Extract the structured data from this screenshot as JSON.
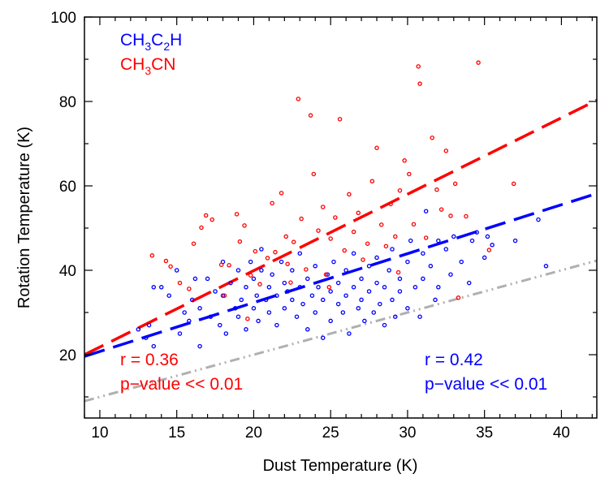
{
  "chart_data": {
    "type": "scatter",
    "title": "",
    "xlabel": "Dust Temperature (K)",
    "ylabel": "Rotation Temperature (K)",
    "xlim": [
      9,
      42.3
    ],
    "ylim": [
      5,
      100
    ],
    "x_ticks": [
      10,
      15,
      20,
      25,
      30,
      35,
      40
    ],
    "y_ticks": [
      20,
      40,
      60,
      80,
      100
    ],
    "grid": false,
    "legend_position": "top-left",
    "series": [
      {
        "name": "CH3C2H",
        "label_parts": [
          [
            "CH",
            "n"
          ],
          [
            "3",
            "sub"
          ],
          [
            "C",
            "n"
          ],
          [
            "2",
            "sub"
          ],
          [
            "H",
            "n"
          ]
        ],
        "color": "#0000ff",
        "points": [
          [
            12.5,
            26
          ],
          [
            13,
            24
          ],
          [
            13.2,
            27
          ],
          [
            13.5,
            22
          ],
          [
            13.5,
            36
          ],
          [
            14,
            36
          ],
          [
            14.5,
            34
          ],
          [
            15,
            40
          ],
          [
            15.2,
            25
          ],
          [
            15.5,
            30
          ],
          [
            15.8,
            28
          ],
          [
            16,
            33
          ],
          [
            16.2,
            38
          ],
          [
            16.5,
            31
          ],
          [
            16.5,
            22
          ],
          [
            17,
            38
          ],
          [
            17.2,
            29
          ],
          [
            17.5,
            35
          ],
          [
            17.8,
            27
          ],
          [
            18,
            34
          ],
          [
            18,
            42
          ],
          [
            18.2,
            25
          ],
          [
            18.5,
            37
          ],
          [
            18.8,
            31
          ],
          [
            19,
            29
          ],
          [
            19,
            40
          ],
          [
            19.2,
            33
          ],
          [
            19.5,
            36
          ],
          [
            19.5,
            26
          ],
          [
            19.8,
            42
          ],
          [
            20,
            31
          ],
          [
            20,
            38
          ],
          [
            20.2,
            34
          ],
          [
            20.3,
            28
          ],
          [
            20.5,
            40
          ],
          [
            20.5,
            45
          ],
          [
            20.8,
            33
          ],
          [
            21,
            36
          ],
          [
            21,
            30
          ],
          [
            21.2,
            39
          ],
          [
            21.5,
            34
          ],
          [
            21.5,
            27
          ],
          [
            21.8,
            42
          ],
          [
            22,
            31
          ],
          [
            22,
            37
          ],
          [
            22.2,
            35
          ],
          [
            22.5,
            33
          ],
          [
            22.5,
            40
          ],
          [
            22.8,
            29
          ],
          [
            23,
            36
          ],
          [
            23,
            44
          ],
          [
            23.2,
            32
          ],
          [
            23.5,
            38
          ],
          [
            23.5,
            26
          ],
          [
            23.8,
            34
          ],
          [
            24,
            41
          ],
          [
            24,
            30
          ],
          [
            24.2,
            36
          ],
          [
            24.5,
            33
          ],
          [
            24.5,
            24
          ],
          [
            24.8,
            39
          ],
          [
            25,
            35
          ],
          [
            25,
            28
          ],
          [
            25.2,
            42
          ],
          [
            25.5,
            32
          ],
          [
            25.5,
            37
          ],
          [
            25.8,
            30
          ],
          [
            26,
            40
          ],
          [
            26,
            34
          ],
          [
            26.2,
            25
          ],
          [
            26.5,
            36
          ],
          [
            26.5,
            44
          ],
          [
            26.8,
            31
          ],
          [
            27,
            38
          ],
          [
            27,
            33
          ],
          [
            27.2,
            28
          ],
          [
            27.5,
            41
          ],
          [
            27.5,
            35
          ],
          [
            27.8,
            30
          ],
          [
            28,
            37
          ],
          [
            28,
            43
          ],
          [
            28.2,
            32
          ],
          [
            28.5,
            36
          ],
          [
            28.5,
            27
          ],
          [
            28.8,
            40
          ],
          [
            29,
            33
          ],
          [
            29,
            45
          ],
          [
            29.2,
            29
          ],
          [
            29.5,
            38
          ],
          [
            29.5,
            35
          ],
          [
            30,
            42
          ],
          [
            30,
            31
          ],
          [
            30.2,
            47
          ],
          [
            30.5,
            36
          ],
          [
            30.8,
            29
          ],
          [
            31,
            44
          ],
          [
            31,
            38
          ],
          [
            31.2,
            54
          ],
          [
            31.5,
            41
          ],
          [
            31.8,
            33
          ],
          [
            32,
            47
          ],
          [
            32,
            36
          ],
          [
            32.5,
            45
          ],
          [
            32.8,
            39
          ],
          [
            33,
            48
          ],
          [
            33.5,
            42
          ],
          [
            34,
            37
          ],
          [
            34.2,
            47
          ],
          [
            34.5,
            49
          ],
          [
            35,
            43
          ],
          [
            35.2,
            48
          ],
          [
            35.5,
            46
          ],
          [
            37,
            47
          ],
          [
            38.5,
            52
          ],
          [
            39,
            41
          ]
        ]
      },
      {
        "name": "CH3CN",
        "label_parts": [
          [
            "CH",
            "n"
          ],
          [
            "3",
            "sub"
          ],
          [
            "CN",
            "n"
          ]
        ],
        "color": "#ff0000",
        "points": [
          [
            13.4,
            43.5
          ],
          [
            14.3,
            42.2
          ],
          [
            14.6,
            40.9
          ],
          [
            15.2,
            37
          ],
          [
            15.8,
            35.6
          ],
          [
            16.1,
            46.3
          ],
          [
            16.6,
            50.1
          ],
          [
            16.9,
            53
          ],
          [
            17.3,
            52
          ],
          [
            17.9,
            41.3
          ],
          [
            18.1,
            34
          ],
          [
            18.4,
            41.2
          ],
          [
            18.9,
            53.3
          ],
          [
            19.1,
            46.8
          ],
          [
            19.4,
            50.6
          ],
          [
            19.8,
            38.8
          ],
          [
            20.1,
            44.5
          ],
          [
            20.4,
            36.7
          ],
          [
            20.9,
            42.9
          ],
          [
            21.2,
            55.9
          ],
          [
            21.4,
            44.3
          ],
          [
            21.8,
            58.3
          ],
          [
            22.1,
            48
          ],
          [
            22.4,
            37.1
          ],
          [
            22.6,
            46.7
          ],
          [
            22.9,
            80.6
          ],
          [
            23.1,
            52.2
          ],
          [
            23.4,
            40.2
          ],
          [
            23.7,
            76.7
          ],
          [
            23.9,
            62.8
          ],
          [
            24.2,
            49.4
          ],
          [
            24.5,
            55
          ],
          [
            24.7,
            39
          ],
          [
            25,
            47.5
          ],
          [
            25.3,
            52.5
          ],
          [
            25.6,
            75.8
          ],
          [
            25.9,
            44.7
          ],
          [
            26.2,
            58
          ],
          [
            26.5,
            49.1
          ],
          [
            26.8,
            53.6
          ],
          [
            27.1,
            42.5
          ],
          [
            27.4,
            46.3
          ],
          [
            27.7,
            61.1
          ],
          [
            28,
            69
          ],
          [
            28.3,
            50.8
          ],
          [
            28.6,
            45.7
          ],
          [
            28.9,
            55.7
          ],
          [
            29.2,
            48
          ],
          [
            29.5,
            58.9
          ],
          [
            29.8,
            66
          ],
          [
            30.1,
            62.8
          ],
          [
            30.4,
            50.9
          ],
          [
            30.7,
            88.3
          ],
          [
            30.8,
            84.2
          ],
          [
            31.2,
            47.7
          ],
          [
            31.6,
            71.4
          ],
          [
            31.9,
            59.1
          ],
          [
            32.2,
            54.4
          ],
          [
            32.5,
            68.3
          ],
          [
            32.8,
            52.9
          ],
          [
            33.1,
            60.5
          ],
          [
            33.8,
            52.8
          ],
          [
            34.6,
            89.2
          ],
          [
            35.3,
            44.8
          ],
          [
            36.9,
            60.5
          ],
          [
            22.2,
            41.5
          ],
          [
            24.9,
            36
          ],
          [
            29.4,
            39.5
          ],
          [
            33.3,
            33.5
          ],
          [
            19.6,
            28.5
          ]
        ]
      }
    ],
    "lines": [
      {
        "name": "CH3CN fit",
        "color": "#ff0000",
        "style": "dash",
        "x": [
          9,
          42.3
        ],
        "y": [
          20,
          80.3
        ]
      },
      {
        "name": "CH3C2H fit",
        "color": "#0000ff",
        "style": "dash",
        "x": [
          9,
          42.3
        ],
        "y": [
          19.6,
          58.2
        ]
      },
      {
        "name": "1:1 reference",
        "color": "#b0b0b0",
        "style": "dashdotdot",
        "x": [
          9,
          42.3
        ],
        "y": [
          9,
          42.3
        ]
      }
    ],
    "annotations": [
      {
        "name": "ch3cn-r",
        "text": "r = 0.36",
        "color": "#ff0000"
      },
      {
        "name": "ch3cn-p",
        "text": "p−value << 0.01",
        "color": "#ff0000"
      },
      {
        "name": "ch3c2h-r",
        "text": "r = 0.42",
        "color": "#0000ff"
      },
      {
        "name": "ch3c2h-p",
        "text": "p−value << 0.01",
        "color": "#0000ff"
      }
    ]
  }
}
